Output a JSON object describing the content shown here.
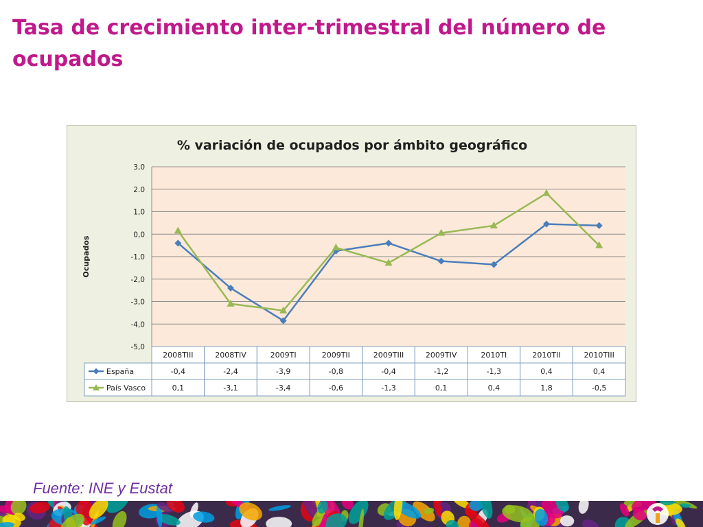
{
  "slide": {
    "title": "Tasa de crecimiento inter-trimestral del número de ocupados",
    "source": "Fuente: INE y Eustat"
  },
  "chart_data": {
    "type": "line",
    "title": "% variación de ocupados por ámbito geográfico",
    "ylabel": "Ocupados",
    "xlabel": "",
    "ylim": [
      -5.0,
      3.0
    ],
    "ytick_step": 1.0,
    "yticks": [
      "3,0",
      "2.0",
      "1,0",
      "0,0",
      "-1,0",
      "-2,0",
      "-3,0",
      "-4,0",
      "-5,0"
    ],
    "grid": true,
    "legend": "data-table-left",
    "categories": [
      "2008TIII",
      "2008TIV",
      "2009TI",
      "2009TII",
      "2009TIII",
      "2009TIV",
      "2010TI",
      "2010TII",
      "2010TIII"
    ],
    "series": [
      {
        "name": "España",
        "color": "#4a7ebb",
        "marker": "diamond",
        "values": [
          -0.4,
          -2.4,
          -3.85,
          -0.75,
          -0.4,
          -1.2,
          -1.35,
          0.45,
          0.38
        ],
        "table_labels": [
          "-0,4",
          "-2,4",
          "-3,9",
          "-0,8",
          "-0,4",
          "-1,2",
          "-1,3",
          "0,4",
          "0,4"
        ]
      },
      {
        "name": "País Vasco",
        "color": "#98b954",
        "marker": "triangle",
        "values": [
          0.15,
          -3.1,
          -3.4,
          -0.6,
          -1.28,
          0.05,
          0.38,
          1.82,
          -0.5
        ],
        "table_labels": [
          "0,1",
          "-3,1",
          "-3,4",
          "-0,6",
          "-1,3",
          "0,1",
          "0,4",
          "1,8",
          "-0,5"
        ]
      }
    ],
    "colors": {
      "plot_area": "#fde9d9",
      "chart_area": "#eef1e1",
      "gridline": "#8c8c8c",
      "table_border": "#7f9fbf"
    }
  },
  "colors": {
    "title": "#c0198c",
    "source": "#7030a0"
  }
}
